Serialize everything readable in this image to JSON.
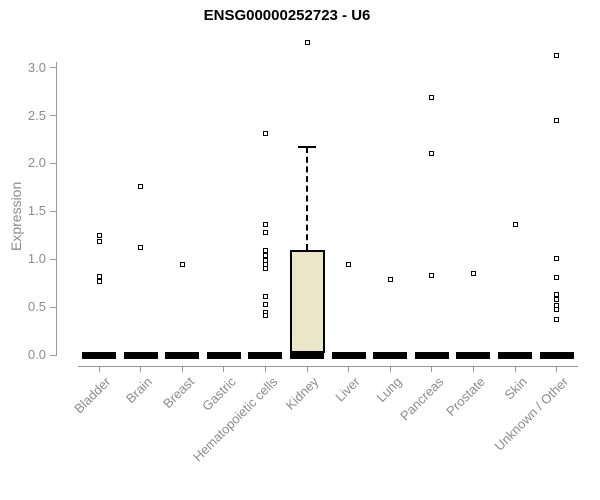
{
  "chart_data": {
    "type": "box",
    "title": "ENSG00000252723 - U6",
    "xlabel": "",
    "ylabel": "Expression",
    "ylim": [
      0,
      3.3
    ],
    "yticks": [
      0.0,
      0.5,
      1.0,
      1.5,
      2.0,
      2.5,
      3.0
    ],
    "grid": false,
    "legend": "none",
    "categories": [
      "Bladder",
      "Brain",
      "Breast",
      "Gastric",
      "Hematopoietic cells",
      "Kidney",
      "Liver",
      "Lung",
      "Pancreas",
      "Prostate",
      "Skin",
      "Unknown / Other"
    ],
    "series": [
      {
        "name": "Bladder",
        "median": 0,
        "q1": 0,
        "q3": 0,
        "whisker_low": 0,
        "whisker_high": 0,
        "outliers": [
          1.25,
          1.19,
          0.82,
          0.77
        ]
      },
      {
        "name": "Brain",
        "median": 0,
        "q1": 0,
        "q3": 0,
        "whisker_low": 0,
        "whisker_high": 0,
        "outliers": [
          1.76,
          1.12
        ]
      },
      {
        "name": "Breast",
        "median": 0,
        "q1": 0,
        "q3": 0,
        "whisker_low": 0,
        "whisker_high": 0,
        "outliers": [
          0.95
        ]
      },
      {
        "name": "Gastric",
        "median": 0,
        "q1": 0,
        "q3": 0,
        "whisker_low": 0,
        "whisker_high": 0,
        "outliers": []
      },
      {
        "name": "Hematopoietic cells",
        "median": 0,
        "q1": 0,
        "q3": 0,
        "whisker_low": 0,
        "whisker_high": 0,
        "outliers": [
          2.31,
          1.36,
          1.28,
          1.09,
          1.04,
          0.99,
          0.95,
          0.9,
          0.61,
          0.53,
          0.44,
          0.41
        ]
      },
      {
        "name": "Kidney",
        "median": 0,
        "q1": 0.02,
        "q3": 1.1,
        "whisker_low": 0,
        "whisker_high": 2.17,
        "outliers": [
          3.26
        ]
      },
      {
        "name": "Liver",
        "median": 0,
        "q1": 0,
        "q3": 0,
        "whisker_low": 0,
        "whisker_high": 0,
        "outliers": [
          0.94
        ]
      },
      {
        "name": "Lung",
        "median": 0,
        "q1": 0,
        "q3": 0,
        "whisker_low": 0,
        "whisker_high": 0,
        "outliers": [
          0.79
        ]
      },
      {
        "name": "Pancreas",
        "median": 0,
        "q1": 0,
        "q3": 0,
        "whisker_low": 0,
        "whisker_high": 0,
        "outliers": [
          2.69,
          2.1,
          0.83
        ]
      },
      {
        "name": "Prostate",
        "median": 0,
        "q1": 0,
        "q3": 0,
        "whisker_low": 0,
        "whisker_high": 0,
        "outliers": [
          0.85
        ]
      },
      {
        "name": "Skin",
        "median": 0,
        "q1": 0,
        "q3": 0,
        "whisker_low": 0,
        "whisker_high": 0,
        "outliers": [
          1.36
        ]
      },
      {
        "name": "Unknown / Other",
        "median": 0,
        "q1": 0,
        "q3": 0,
        "whisker_low": 0,
        "whisker_high": 0,
        "outliers": [
          3.13,
          2.45,
          1.01,
          0.81,
          0.63,
          0.58,
          0.52,
          0.47,
          0.37
        ]
      }
    ],
    "colors": {
      "box_fill": "#EBE6C8",
      "box_border": "#000000",
      "marker": "#000000",
      "axis_line": "#999999",
      "axis_text": "#8C8C8C",
      "title": "#000000",
      "background": "#FFFFFF"
    }
  }
}
